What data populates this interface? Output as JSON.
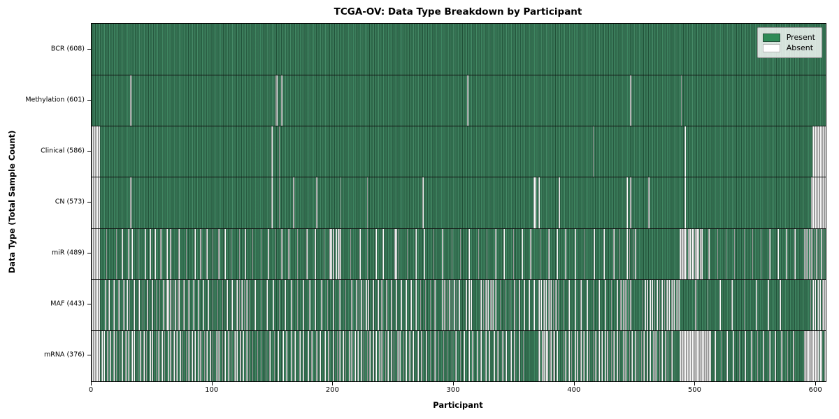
{
  "title": "TCGA-OV: Data Type Breakdown by Participant",
  "legend": {
    "present_label": "Present",
    "absent_label": "Absent"
  },
  "chart_data": {
    "type": "heatmap",
    "title": "TCGA-OV: Data Type Breakdown by Participant",
    "xlabel": "Participant",
    "ylabel": "Data Type (Total Sample Count)",
    "x_ticks": [
      0,
      100,
      200,
      300,
      400,
      500,
      600
    ],
    "xlim": [
      0,
      608
    ],
    "n_participants": 608,
    "grid": false,
    "legend_position": "upper right",
    "colors": {
      "present": "#2e8b57",
      "absent": "#f8f8f8",
      "bar_edge": "#123524",
      "legend_bg": "#dfe5df"
    },
    "legend_entries": [
      {
        "label": "Present",
        "color": "#2e8b57"
      },
      {
        "label": "Absent",
        "color": "#ffffff"
      }
    ],
    "rows": [
      {
        "key": "bcr",
        "label": "BCR (608)",
        "name": "BCR",
        "present_count": 608,
        "absent": []
      },
      {
        "key": "methylation",
        "label": "Methylation (601)",
        "name": "Methylation",
        "present_count": 601,
        "absent": [
          32,
          152,
          153,
          157,
          311,
          446,
          488
        ]
      },
      {
        "key": "clinical",
        "label": "Clinical (586)",
        "name": "Clinical",
        "present_count": 586,
        "absent": [
          0,
          1,
          2,
          3,
          4,
          5,
          6,
          149,
          155,
          415,
          491,
          597,
          598,
          599,
          600,
          601,
          602,
          603,
          604,
          605,
          606,
          607
        ]
      },
      {
        "key": "cn",
        "label": "CN (573)",
        "name": "CN",
        "present_count": 573,
        "absent": [
          0,
          1,
          2,
          3,
          4,
          5,
          6,
          32,
          149,
          155,
          167,
          186,
          206,
          228,
          274,
          366,
          367,
          370,
          387,
          443,
          446,
          461,
          491,
          596,
          597,
          598,
          599,
          600,
          601,
          602,
          603,
          604,
          605,
          606,
          607
        ]
      },
      {
        "key": "mir",
        "label": "miR (489)",
        "name": "miR",
        "present_count": 489,
        "absent": [
          0,
          1,
          2,
          3,
          4,
          5,
          6,
          12,
          20,
          25,
          30,
          33,
          38,
          44,
          48,
          52,
          57,
          62,
          65,
          72,
          78,
          85,
          90,
          95,
          100,
          105,
          110,
          115,
          122,
          127,
          133,
          140,
          146,
          152,
          157,
          163,
          170,
          178,
          185,
          192,
          197,
          198,
          200,
          202,
          204,
          205,
          206,
          214,
          222,
          228,
          235,
          241,
          251,
          252,
          254,
          261,
          268,
          275,
          283,
          290,
          298,
          305,
          312,
          320,
          327,
          334,
          341,
          349,
          356,
          363,
          371,
          378,
          385,
          392,
          400,
          408,
          416,
          424,
          432,
          437,
          443,
          445,
          448,
          450,
          487,
          488,
          489,
          490,
          491,
          492,
          494,
          495,
          497,
          498,
          500,
          501,
          502,
          504,
          505,
          511,
          518,
          525,
          532,
          540,
          547,
          554,
          561,
          568,
          575,
          582,
          590,
          592,
          594,
          596,
          598,
          600,
          602,
          604,
          606
        ]
      },
      {
        "key": "maf",
        "label": "MAF (443)",
        "name": "MAF",
        "present_count": 443,
        "absent": [
          0,
          1,
          2,
          3,
          4,
          5,
          6,
          11,
          14,
          18,
          22,
          26,
          29,
          31,
          35,
          39,
          42,
          46,
          50,
          53,
          56,
          59,
          62,
          63,
          65,
          67,
          69,
          71,
          72,
          76,
          80,
          84,
          88,
          92,
          96,
          100,
          104,
          108,
          112,
          116,
          120,
          122,
          124,
          126,
          128,
          130,
          135,
          140,
          145,
          150,
          155,
          160,
          165,
          170,
          175,
          180,
          185,
          190,
          195,
          200,
          205,
          210,
          215,
          219,
          221,
          223,
          225,
          227,
          229,
          233,
          237,
          240,
          244,
          248,
          252,
          256,
          260,
          264,
          268,
          272,
          276,
          280,
          284,
          290,
          292,
          294,
          296,
          298,
          300,
          302,
          304,
          310,
          312,
          314,
          322,
          324,
          326,
          328,
          330,
          332,
          334,
          338,
          342,
          346,
          350,
          354,
          358,
          362,
          366,
          370,
          372,
          374,
          376,
          378,
          380,
          382,
          384,
          386,
          390,
          395,
          400,
          405,
          410,
          415,
          420,
          425,
          430,
          435,
          438,
          440,
          442,
          444,
          446,
          456,
          458,
          460,
          462,
          464,
          466,
          468,
          470,
          472,
          474,
          476,
          478,
          480,
          482,
          484,
          486,
          500,
          510,
          520,
          530,
          540,
          550,
          560,
          570,
          595,
          597,
          599,
          601,
          603,
          605,
          606,
          607
        ]
      },
      {
        "key": "mrna",
        "label": "mRNA (376)",
        "name": "mRNA",
        "present_count": 376,
        "absent": [
          0,
          1,
          2,
          3,
          4,
          5,
          6,
          8,
          10,
          13,
          15,
          18,
          20,
          23,
          25,
          28,
          30,
          33,
          35,
          38,
          40,
          43,
          45,
          48,
          50,
          53,
          55,
          58,
          60,
          63,
          65,
          68,
          70,
          73,
          75,
          78,
          80,
          83,
          85,
          88,
          90,
          93,
          95,
          98,
          100,
          103,
          105,
          108,
          110,
          113,
          115,
          118,
          120,
          123,
          125,
          128,
          130,
          133,
          137,
          140,
          144,
          147,
          151,
          154,
          158,
          161,
          165,
          168,
          172,
          175,
          179,
          182,
          186,
          189,
          193,
          196,
          200,
          203,
          205,
          208,
          210,
          213,
          215,
          218,
          220,
          223,
          225,
          228,
          230,
          233,
          235,
          238,
          240,
          243,
          245,
          248,
          250,
          253,
          255,
          258,
          260,
          263,
          266,
          270,
          273,
          277,
          280,
          284,
          287,
          291,
          294,
          298,
          301,
          305,
          308,
          312,
          315,
          319,
          322,
          326,
          329,
          333,
          336,
          340,
          343,
          347,
          350,
          354,
          357,
          370,
          371,
          373,
          374,
          376,
          377,
          379,
          380,
          382,
          383,
          385,
          390,
          392,
          395,
          397,
          400,
          402,
          405,
          407,
          410,
          412,
          415,
          417,
          420,
          422,
          425,
          427,
          430,
          432,
          435,
          437,
          440,
          442,
          445,
          447,
          450,
          452,
          455,
          457,
          460,
          462,
          465,
          467,
          470,
          472,
          475,
          477,
          480,
          487,
          488,
          489,
          490,
          491,
          492,
          493,
          494,
          495,
          496,
          497,
          498,
          499,
          500,
          501,
          502,
          503,
          504,
          505,
          506,
          507,
          508,
          509,
          510,
          511,
          512,
          516,
          521,
          526,
          531,
          536,
          541,
          546,
          551,
          556,
          561,
          566,
          571,
          576,
          581,
          590,
          591,
          592,
          593,
          594,
          595,
          596,
          597,
          598,
          599,
          600,
          601,
          603,
          604,
          607
        ]
      }
    ]
  }
}
